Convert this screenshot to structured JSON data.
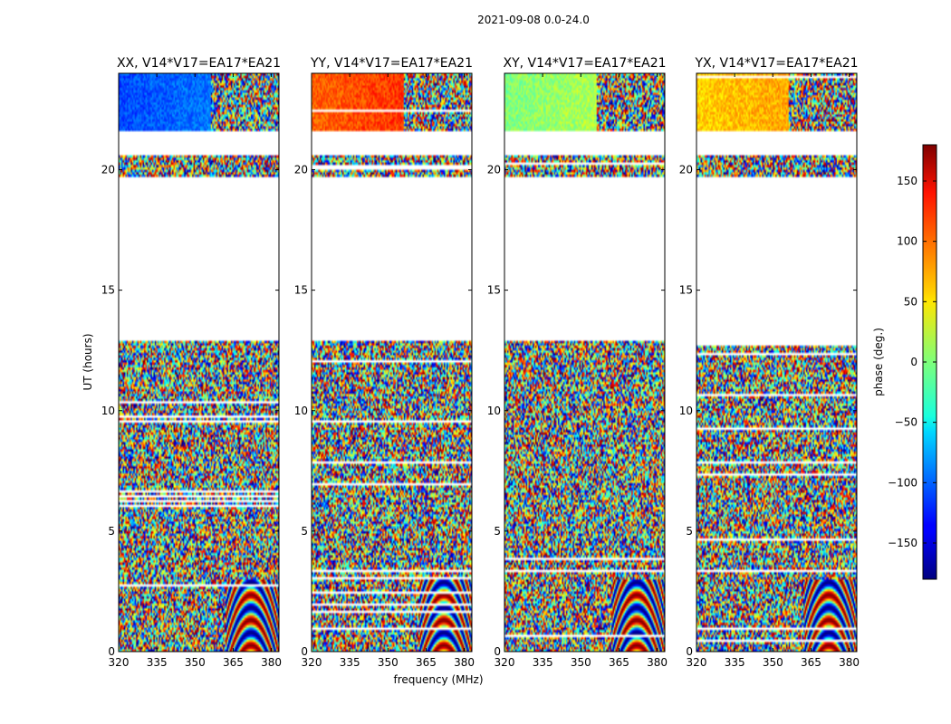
{
  "figure": {
    "suptitle": "2021-09-08 0.0-24.0",
    "xlabel": "frequency (MHz)",
    "ylabel": "UT (hours)"
  },
  "chart_data": {
    "type": "heatmap",
    "suptitle": "2021-09-08 0.0-24.0",
    "xlabel": "frequency (MHz)",
    "ylabel": "UT (hours)",
    "xlim": [
      320,
      383
    ],
    "ylim": [
      0,
      24
    ],
    "x_ticks": [
      320,
      335,
      350,
      365,
      380
    ],
    "y_ticks": [
      0,
      5,
      10,
      15,
      20
    ],
    "x_tick_labels": [
      "320",
      "335",
      "350",
      "365",
      "380"
    ],
    "y_tick_labels": [
      "0",
      "5",
      "10",
      "15",
      "20"
    ],
    "panels": [
      {
        "title": "XX, V14*V17=EA17*EA21",
        "base_phase": -110
      },
      {
        "title": "YY, V14*V17=EA17*EA21",
        "base_phase": 100
      },
      {
        "title": "XY, V14*V17=EA17*EA21",
        "base_phase": 0
      },
      {
        "title": "YX, V14*V17=EA17*EA21",
        "base_phase": 60
      }
    ],
    "data_time_ranges": [
      [
        0.0,
        12.9
      ],
      [
        19.7,
        20.6
      ],
      [
        21.6,
        24.0
      ]
    ],
    "colorbar": {
      "label": "phase (deg.)",
      "colormap": "jet",
      "range": [
        -180,
        180
      ],
      "ticks": [
        150,
        100,
        50,
        0,
        -50,
        -100,
        -150
      ],
      "tick_labels": [
        "150",
        "100",
        "50",
        "0",
        "−50",
        "−100",
        "−150"
      ]
    }
  }
}
